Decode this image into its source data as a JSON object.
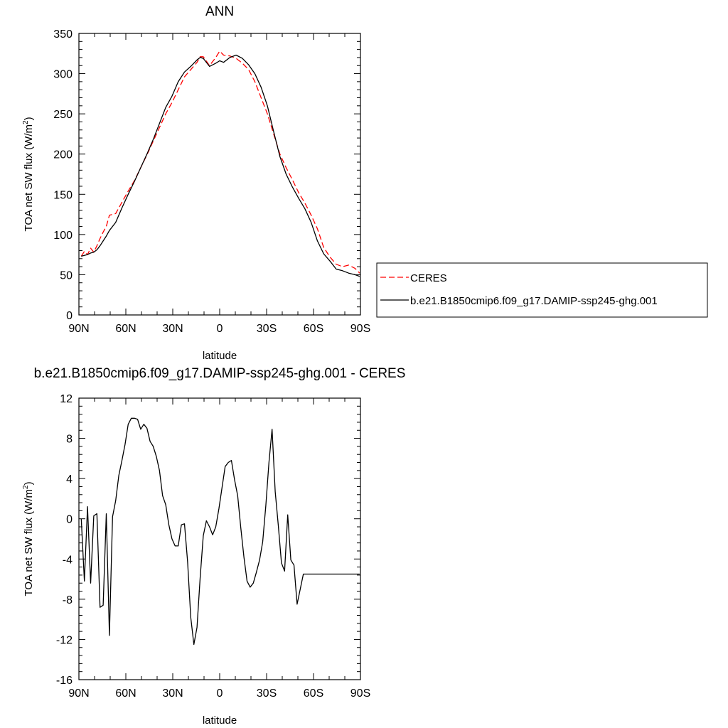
{
  "chart_data": [
    {
      "type": "line",
      "title": "ANN",
      "xlabel": "latitude",
      "ylabel_main": "TOA net SW flux (W/m",
      "ylabel_sup": "2",
      "ylabel_tail": ")",
      "xlim": [
        90,
        -90
      ],
      "ylim": [
        0,
        350
      ],
      "xticks": [
        {
          "value": 90,
          "label": "90N"
        },
        {
          "value": 60,
          "label": "60N"
        },
        {
          "value": 30,
          "label": "30N"
        },
        {
          "value": 0,
          "label": "0"
        },
        {
          "value": -30,
          "label": "30S"
        },
        {
          "value": -60,
          "label": "60S"
        },
        {
          "value": -90,
          "label": "90S"
        }
      ],
      "yticks": [
        {
          "value": 0,
          "label": "0"
        },
        {
          "value": 50,
          "label": "50"
        },
        {
          "value": 100,
          "label": "100"
        },
        {
          "value": 150,
          "label": "150"
        },
        {
          "value": 200,
          "label": "200"
        },
        {
          "value": 250,
          "label": "250"
        },
        {
          "value": 300,
          "label": "300"
        },
        {
          "value": 350,
          "label": "350"
        }
      ],
      "grid": false,
      "legend_position": "right",
      "series": [
        {
          "name": "CERES",
          "color": "#ff0000",
          "dash": true,
          "x": [
            88.5,
            86.5,
            84.5,
            82.5,
            80.5,
            78.5,
            76.5,
            74.5,
            72.5,
            70.5,
            66.5,
            62.5,
            58.5,
            54.5,
            50.5,
            46.5,
            42.5,
            38.5,
            34.5,
            30.5,
            26.5,
            22.5,
            18.5,
            14.5,
            12.5,
            10.5,
            6.5,
            2.5,
            0,
            -2.5,
            -6.5,
            -10.5,
            -14.5,
            -18.5,
            -22.5,
            -26.5,
            -30.5,
            -34.5,
            -38.5,
            -42.5,
            -46.5,
            -50.5,
            -54.5,
            -58.5,
            -62.5,
            -66.5,
            -70.5,
            -74.5,
            -78.5,
            -82.5,
            -86.5,
            -89.5
          ],
          "y": [
            73,
            79,
            75,
            83,
            78,
            86,
            95,
            103,
            110,
            124,
            126,
            140,
            154,
            167,
            183,
            199,
            216,
            233,
            250,
            264,
            280,
            296,
            305,
            314,
            321,
            321,
            310,
            320,
            328,
            323,
            322,
            319,
            313,
            305,
            290,
            270,
            250,
            225,
            200,
            183,
            168,
            152,
            139,
            124,
            107,
            84,
            72,
            63,
            60,
            62,
            58,
            52
          ]
        },
        {
          "name": "b.e21.B1850cmip6.f09_g17.DAMIP-ssp245-ghg.001",
          "color": "#000000",
          "dash": false,
          "x": [
            88.5,
            86.5,
            84.5,
            82.5,
            80.5,
            78.5,
            76.5,
            74.5,
            72.5,
            70.5,
            66.5,
            62.5,
            58.5,
            54.5,
            50.5,
            46.5,
            42.5,
            38.5,
            34.5,
            30.5,
            26.5,
            22.5,
            18.5,
            14.5,
            12.5,
            10.5,
            6.5,
            2.5,
            0,
            -2.5,
            -6.5,
            -10.5,
            -14.5,
            -18.5,
            -22.5,
            -26.5,
            -30.5,
            -34.5,
            -38.5,
            -42.5,
            -46.5,
            -50.5,
            -54.5,
            -58.5,
            -62.5,
            -66.5,
            -70.5,
            -74.5,
            -78.5,
            -82.5,
            -86.5,
            -89.5
          ],
          "y": [
            73,
            74,
            75,
            77,
            78,
            81,
            86,
            92,
            98,
            105,
            115,
            133,
            150,
            166,
            183,
            200,
            218,
            238,
            258,
            272,
            290,
            302,
            309,
            317,
            320,
            319,
            309,
            313,
            316,
            314,
            320,
            323,
            319,
            311,
            300,
            283,
            260,
            228,
            197,
            175,
            159,
            145,
            132,
            115,
            92,
            76,
            67,
            57,
            55,
            52,
            50,
            48
          ]
        }
      ]
    },
    {
      "type": "line",
      "title": "b.e21.B1850cmip6.f09_g17.DAMIP-ssp245-ghg.001 - CERES",
      "xlabel": "latitude",
      "ylabel_main": "TOA net SW flux (W/m",
      "ylabel_sup": "2",
      "ylabel_tail": ")",
      "xlim": [
        90,
        -90
      ],
      "ylim": [
        -16,
        12
      ],
      "xticks": [
        {
          "value": 90,
          "label": "90N"
        },
        {
          "value": 60,
          "label": "60N"
        },
        {
          "value": 30,
          "label": "30N"
        },
        {
          "value": 0,
          "label": "0"
        },
        {
          "value": -30,
          "label": "30S"
        },
        {
          "value": -60,
          "label": "60S"
        },
        {
          "value": -90,
          "label": "90S"
        }
      ],
      "yticks": [
        {
          "value": -16,
          "label": "-16"
        },
        {
          "value": -12,
          "label": "-12"
        },
        {
          "value": -8,
          "label": "-8"
        },
        {
          "value": -4,
          "label": "-4"
        },
        {
          "value": 0,
          "label": "0"
        },
        {
          "value": 4,
          "label": "4"
        },
        {
          "value": 8,
          "label": "8"
        },
        {
          "value": 12,
          "label": "12"
        }
      ],
      "grid": false,
      "series": [
        {
          "name": "",
          "color": "#000000",
          "dash": false,
          "x": [
            88.5,
            86.5,
            84.5,
            82.5,
            80.5,
            78.5,
            76.5,
            74.5,
            72.5,
            70.5,
            68.5,
            66.5,
            64.5,
            62.5,
            60.5,
            58.5,
            56.5,
            54.5,
            52.5,
            50.5,
            48.5,
            46.5,
            44.5,
            42.5,
            40.5,
            38.5,
            36.5,
            34.5,
            32.5,
            30.5,
            28.5,
            26.5,
            24.5,
            22.5,
            20.5,
            18.5,
            16.5,
            14.5,
            12.5,
            10.5,
            8.5,
            6.5,
            4.5,
            2.5,
            0.5,
            -1.5,
            -3.5,
            -5.5,
            -7.5,
            -9.5,
            -11.5,
            -13.5,
            -15.5,
            -17.5,
            -19.5,
            -21.5,
            -23.5,
            -25.5,
            -27.5,
            -29.5,
            -31.5,
            -33.5,
            -35.5,
            -37.5,
            -39.5,
            -41.5,
            -43.5,
            -45.5,
            -47.5,
            -49.5,
            -51.5,
            -53.5,
            -55.5,
            -57.5,
            -59.5,
            -61.5,
            -63.5,
            -65.5,
            -67.5,
            -69.5,
            -71.5,
            -73.5,
            -75.5,
            -77.5,
            -79.5,
            -81.5,
            -83.5,
            -85.5,
            -87.5,
            -89.5
          ],
          "y": [
            0.0,
            -6.2,
            1.2,
            -6.4,
            0.3,
            0.5,
            -8.8,
            -8.6,
            0.5,
            -11.6,
            0.2,
            1.8,
            4.3,
            5.8,
            7.4,
            9.4,
            10.0,
            10.0,
            9.9,
            8.9,
            9.4,
            9.0,
            7.7,
            7.2,
            6.2,
            4.8,
            2.3,
            1.4,
            -0.6,
            -2.0,
            -2.7,
            -2.7,
            -0.6,
            -0.5,
            -4.3,
            -9.8,
            -12.5,
            -10.8,
            -5.9,
            -1.7,
            -0.2,
            -0.8,
            -1.6,
            -0.8,
            1.0,
            3.1,
            5.2,
            5.6,
            5.8,
            3.9,
            2.3,
            -0.9,
            -3.8,
            -6.2,
            -6.8,
            -6.4,
            -5.3,
            -4.1,
            -2.3,
            1.3,
            5.6,
            8.9,
            2.7,
            -0.7,
            -4.4,
            -5.2,
            0.4,
            -4.1,
            -4.6,
            -8.5,
            -7.0,
            -5.5,
            -5.5,
            -5.5,
            -5.5,
            -5.5,
            -5.5,
            -5.5,
            -5.5,
            -5.5,
            -5.5,
            -5.5,
            -5.5,
            -5.5,
            -5.5,
            -5.5,
            -5.5,
            -5.5,
            -5.5,
            -5.5
          ]
        }
      ]
    }
  ]
}
